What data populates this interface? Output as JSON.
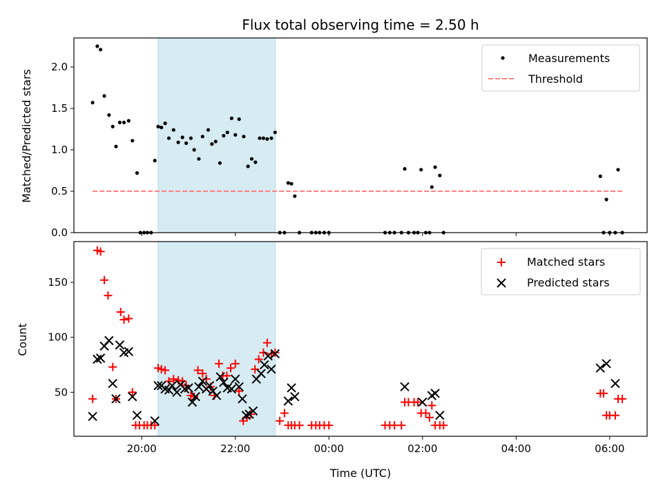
{
  "chart_data": {
    "type": "scatter",
    "title": "Flux total observing time = 2.50 h",
    "xlabel": "Time (UTC)",
    "x_unit": "hours",
    "xlim": [
      18.55,
      30.8
    ],
    "x_ticks": [
      20,
      22,
      24,
      26,
      28,
      30
    ],
    "x_tick_labels": [
      "20:00",
      "22:00",
      "00:00",
      "02:00",
      "04:00",
      "06:00"
    ],
    "shaded_region": {
      "from": 20.35,
      "to": 22.85,
      "color": "#add8e6"
    },
    "colors": {
      "measurements": "#000000",
      "threshold": "#ff7f7f",
      "matched": "#ff0000",
      "predicted": "#000000"
    },
    "panels": [
      {
        "ylabel": "Matched/Predicted stars",
        "ylim": [
          0,
          2.35
        ],
        "y_ticks": [
          0.0,
          0.5,
          1.0,
          1.5,
          2.0
        ],
        "y_tick_labels": [
          "0.0",
          "0.5",
          "1.0",
          "1.5",
          "2.0"
        ],
        "legend": "top-right",
        "series": [
          {
            "name": "Measurements",
            "kind": "scatter",
            "marker": "dot",
            "x": [
              18.95,
              19.05,
              19.12,
              19.2,
              19.3,
              19.38,
              19.45,
              19.53,
              19.62,
              19.72,
              19.8,
              19.9,
              19.97,
              20.05,
              20.12,
              20.2,
              20.28,
              20.35,
              20.42,
              20.5,
              20.58,
              20.68,
              20.78,
              20.87,
              20.95,
              21.05,
              21.12,
              21.22,
              21.3,
              21.42,
              21.5,
              21.58,
              21.67,
              21.75,
              21.83,
              21.92,
              22.0,
              22.08,
              22.18,
              22.27,
              22.35,
              22.43,
              22.52,
              22.6,
              22.68,
              22.77,
              22.85,
              22.95,
              23.05,
              23.13,
              23.2,
              23.27,
              23.37,
              23.63,
              23.72,
              23.8,
              23.9,
              24.0,
              25.2,
              25.3,
              25.4,
              25.55,
              25.62,
              25.7,
              25.82,
              25.9,
              25.97,
              26.07,
              26.15,
              26.2,
              26.27,
              26.37,
              26.45,
              29.8,
              29.87,
              29.93,
              30.0,
              30.12,
              30.18,
              30.27
            ],
            "y": [
              1.57,
              2.25,
              2.21,
              1.65,
              1.42,
              1.28,
              1.04,
              1.33,
              1.33,
              1.35,
              1.11,
              0.72,
              0.0,
              0.0,
              0.0,
              0.0,
              0.87,
              1.28,
              1.27,
              1.32,
              1.14,
              1.24,
              1.09,
              1.15,
              1.08,
              1.14,
              1.0,
              0.89,
              1.16,
              1.24,
              1.07,
              1.1,
              0.84,
              1.17,
              1.21,
              1.38,
              1.18,
              1.37,
              1.16,
              0.8,
              0.89,
              0.85,
              1.14,
              1.14,
              1.13,
              1.14,
              1.21,
              0.0,
              0.0,
              0.6,
              0.59,
              0.44,
              0.0,
              0.0,
              0.0,
              0.0,
              0.0,
              0.0,
              0.0,
              0.0,
              0.0,
              0.0,
              0.77,
              0.0,
              0.0,
              0.0,
              0.76,
              0.0,
              0.0,
              0.55,
              0.79,
              0.69,
              0.0,
              0.68,
              0.0,
              0.4,
              0.0,
              0.0,
              0.76,
              0.0
            ]
          },
          {
            "name": "Threshold",
            "kind": "line",
            "style": "dashed",
            "x": [
              18.95,
              30.27
            ],
            "y": [
              0.5,
              0.5
            ]
          }
        ]
      },
      {
        "ylabel": "Count",
        "ylim": [
          10,
          187
        ],
        "y_ticks": [
          50,
          100,
          150
        ],
        "y_tick_labels": [
          "50",
          "100",
          "150"
        ],
        "legend": "top-right",
        "series": [
          {
            "name": "Matched stars",
            "kind": "scatter",
            "marker": "plus",
            "x": [
              18.95,
              19.05,
              19.12,
              19.2,
              19.28,
              19.38,
              19.45,
              19.55,
              19.62,
              19.72,
              19.8,
              19.87,
              19.95,
              20.05,
              20.12,
              20.2,
              20.28,
              20.35,
              20.42,
              20.5,
              20.58,
              20.68,
              20.78,
              20.87,
              20.95,
              21.05,
              21.12,
              21.2,
              21.3,
              21.38,
              21.47,
              21.55,
              21.65,
              21.73,
              21.82,
              21.9,
              22.0,
              22.08,
              22.17,
              22.25,
              22.33,
              22.42,
              22.5,
              22.6,
              22.68,
              22.77,
              22.85,
              22.95,
              23.05,
              23.13,
              23.2,
              23.27,
              23.37,
              23.63,
              23.72,
              23.8,
              23.9,
              24.0,
              25.2,
              25.3,
              25.4,
              25.55,
              25.62,
              25.7,
              25.82,
              25.9,
              25.97,
              26.07,
              26.15,
              26.2,
              26.27,
              26.37,
              26.45,
              29.8,
              29.87,
              29.93,
              30.0,
              30.12,
              30.18,
              30.27
            ],
            "y": [
              44,
              179,
              178,
              152,
              138,
              73,
              44,
              123,
              116,
              117,
              50,
              20,
              20,
              20,
              20,
              20,
              20,
              72,
              71,
              70,
              60,
              62,
              61,
              60,
              56,
              47,
              46,
              70,
              67,
              62,
              55,
              47,
              76,
              65,
              65,
              72,
              76,
              51,
              24,
              27,
              30,
              71,
              80,
              86,
              95,
              85,
              86,
              24,
              31,
              20,
              20,
              20,
              20,
              20,
              20,
              20,
              20,
              20,
              20,
              20,
              20,
              20,
              41,
              41,
              41,
              41,
              31,
              31,
              27,
              38,
              20,
              20,
              20,
              49,
              49,
              29,
              29,
              29,
              44,
              44
            ]
          },
          {
            "name": "Predicted stars",
            "kind": "scatter",
            "marker": "x",
            "x": [
              18.95,
              19.05,
              19.12,
              19.2,
              19.3,
              19.38,
              19.45,
              19.53,
              19.62,
              19.72,
              19.8,
              19.9,
              20.28,
              20.35,
              20.42,
              20.5,
              20.58,
              20.65,
              20.75,
              20.83,
              20.92,
              21.0,
              21.08,
              21.15,
              21.22,
              21.3,
              21.38,
              21.45,
              21.52,
              21.6,
              21.68,
              21.75,
              21.83,
              21.92,
              22.0,
              22.08,
              22.15,
              22.23,
              22.3,
              22.38,
              22.45,
              22.55,
              22.62,
              22.7,
              22.77,
              22.85,
              23.13,
              23.2,
              23.27,
              25.62,
              26.0,
              26.2,
              26.27,
              26.37,
              29.8,
              29.93,
              30.12
            ],
            "y": [
              28,
              80,
              81,
              92,
              97,
              58,
              44,
              93,
              86,
              87,
              46,
              29,
              24,
              56,
              56,
              53,
              52,
              56,
              50,
              57,
              53,
              54,
              41,
              46,
              55,
              60,
              53,
              56,
              51,
              47,
              64,
              59,
              54,
              53,
              62,
              55,
              44,
              29,
              30,
              33,
              62,
              67,
              75,
              83,
              71,
              85,
              42,
              54,
              46,
              55,
              41,
              47,
              49,
              29,
              72,
              76,
              58
            ]
          }
        ]
      }
    ]
  }
}
